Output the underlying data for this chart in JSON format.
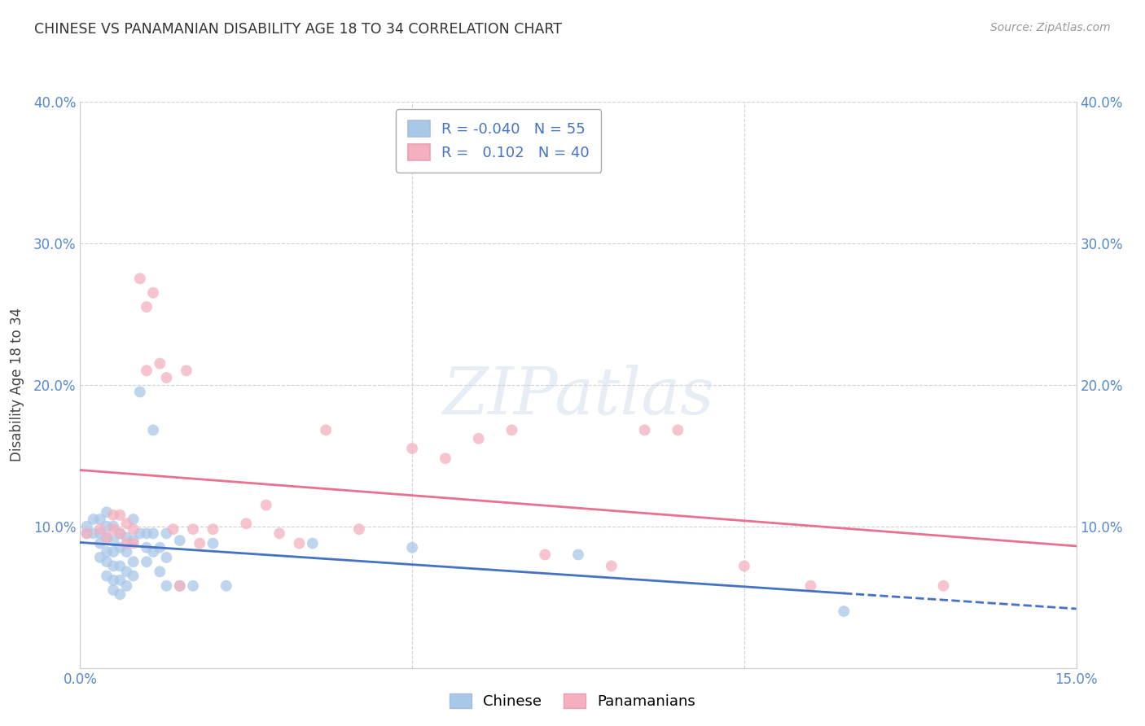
{
  "title": "CHINESE VS PANAMANIAN DISABILITY AGE 18 TO 34 CORRELATION CHART",
  "source": "Source: ZipAtlas.com",
  "ylabel": "Disability Age 18 to 34",
  "xlim": [
    0.0,
    0.15
  ],
  "ylim": [
    0.0,
    0.4
  ],
  "xtick_positions": [
    0.0,
    0.05,
    0.1,
    0.15
  ],
  "xtick_labels": [
    "0.0%",
    "",
    "",
    "15.0%"
  ],
  "ytick_positions": [
    0.0,
    0.1,
    0.2,
    0.3,
    0.4
  ],
  "ytick_labels": [
    "",
    "10.0%",
    "20.0%",
    "30.0%",
    "40.0%"
  ],
  "chinese_color": "#a8c8e8",
  "panamanian_color": "#f4b0c0",
  "chinese_line_color": "#4472c4",
  "panamanian_line_color": "#e87090",
  "chinese_line_solid_end": 0.115,
  "panamanian_line_solid_end": 0.15,
  "watermark_text": "ZIPatlas",
  "chinese_R": -0.04,
  "chinese_N": 55,
  "panamanian_R": 0.102,
  "panamanian_N": 40,
  "chinese_points": [
    [
      0.001,
      0.1
    ],
    [
      0.001,
      0.095
    ],
    [
      0.002,
      0.105
    ],
    [
      0.002,
      0.095
    ],
    [
      0.003,
      0.105
    ],
    [
      0.003,
      0.095
    ],
    [
      0.003,
      0.088
    ],
    [
      0.003,
      0.078
    ],
    [
      0.004,
      0.11
    ],
    [
      0.004,
      0.1
    ],
    [
      0.004,
      0.092
    ],
    [
      0.004,
      0.082
    ],
    [
      0.004,
      0.075
    ],
    [
      0.004,
      0.065
    ],
    [
      0.005,
      0.1
    ],
    [
      0.005,
      0.09
    ],
    [
      0.005,
      0.082
    ],
    [
      0.005,
      0.072
    ],
    [
      0.005,
      0.062
    ],
    [
      0.005,
      0.055
    ],
    [
      0.006,
      0.095
    ],
    [
      0.006,
      0.085
    ],
    [
      0.006,
      0.072
    ],
    [
      0.006,
      0.062
    ],
    [
      0.006,
      0.052
    ],
    [
      0.007,
      0.092
    ],
    [
      0.007,
      0.082
    ],
    [
      0.007,
      0.068
    ],
    [
      0.007,
      0.058
    ],
    [
      0.008,
      0.105
    ],
    [
      0.008,
      0.09
    ],
    [
      0.008,
      0.075
    ],
    [
      0.008,
      0.065
    ],
    [
      0.009,
      0.195
    ],
    [
      0.009,
      0.095
    ],
    [
      0.01,
      0.095
    ],
    [
      0.01,
      0.085
    ],
    [
      0.01,
      0.075
    ],
    [
      0.011,
      0.168
    ],
    [
      0.011,
      0.095
    ],
    [
      0.011,
      0.082
    ],
    [
      0.012,
      0.085
    ],
    [
      0.012,
      0.068
    ],
    [
      0.013,
      0.095
    ],
    [
      0.013,
      0.078
    ],
    [
      0.013,
      0.058
    ],
    [
      0.015,
      0.09
    ],
    [
      0.015,
      0.058
    ],
    [
      0.017,
      0.058
    ],
    [
      0.02,
      0.088
    ],
    [
      0.022,
      0.058
    ],
    [
      0.035,
      0.088
    ],
    [
      0.05,
      0.085
    ],
    [
      0.075,
      0.08
    ],
    [
      0.115,
      0.04
    ]
  ],
  "panamanian_points": [
    [
      0.001,
      0.095
    ],
    [
      0.003,
      0.098
    ],
    [
      0.004,
      0.092
    ],
    [
      0.005,
      0.108
    ],
    [
      0.005,
      0.098
    ],
    [
      0.006,
      0.108
    ],
    [
      0.006,
      0.095
    ],
    [
      0.007,
      0.102
    ],
    [
      0.007,
      0.088
    ],
    [
      0.008,
      0.098
    ],
    [
      0.008,
      0.088
    ],
    [
      0.009,
      0.275
    ],
    [
      0.01,
      0.255
    ],
    [
      0.01,
      0.21
    ],
    [
      0.011,
      0.265
    ],
    [
      0.012,
      0.215
    ],
    [
      0.013,
      0.205
    ],
    [
      0.014,
      0.098
    ],
    [
      0.015,
      0.058
    ],
    [
      0.016,
      0.21
    ],
    [
      0.017,
      0.098
    ],
    [
      0.018,
      0.088
    ],
    [
      0.02,
      0.098
    ],
    [
      0.025,
      0.102
    ],
    [
      0.028,
      0.115
    ],
    [
      0.03,
      0.095
    ],
    [
      0.033,
      0.088
    ],
    [
      0.037,
      0.168
    ],
    [
      0.042,
      0.098
    ],
    [
      0.05,
      0.155
    ],
    [
      0.055,
      0.148
    ],
    [
      0.06,
      0.162
    ],
    [
      0.065,
      0.168
    ],
    [
      0.07,
      0.08
    ],
    [
      0.08,
      0.072
    ],
    [
      0.085,
      0.168
    ],
    [
      0.09,
      0.168
    ],
    [
      0.1,
      0.072
    ],
    [
      0.11,
      0.058
    ],
    [
      0.13,
      0.058
    ]
  ]
}
